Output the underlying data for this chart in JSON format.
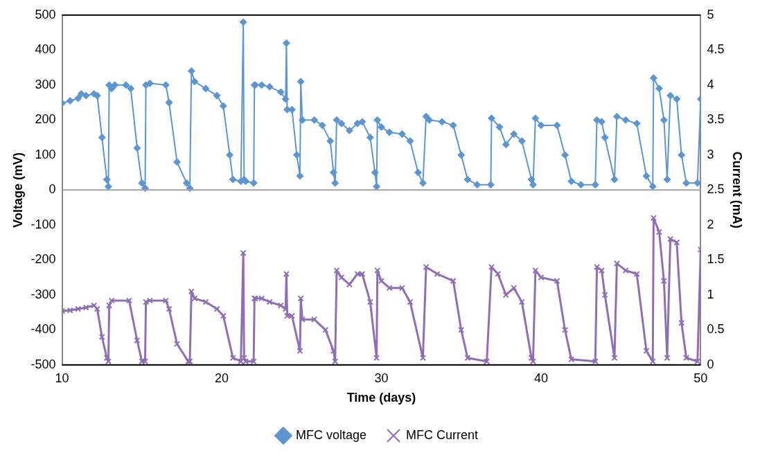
{
  "chart_data": {
    "type": "line",
    "xlabel": "Time (days)",
    "ylabel": "Voltage (mV)",
    "y2label": "Current (mA)",
    "xlim": [
      10,
      50
    ],
    "xticks": [
      10,
      20,
      30,
      40,
      50
    ],
    "ylim": [
      -500,
      500
    ],
    "yticks": [
      -500,
      -400,
      -300,
      -200,
      -100,
      0,
      100,
      200,
      300,
      400,
      500
    ],
    "y2lim": [
      0,
      5
    ],
    "y2ticks": [
      0,
      0.5,
      1,
      1.5,
      2,
      2.5,
      3,
      3.5,
      4,
      4.5,
      5
    ],
    "grid": false,
    "legend": "bottom",
    "ref_lines": [
      {
        "axis": "y",
        "value": 0,
        "color": "#a0a0a0"
      }
    ],
    "series": [
      {
        "name": "MFC voltage",
        "color": "#5b96d2",
        "marker": "diamond",
        "axis": "y",
        "x": [
          10,
          10.5,
          11,
          11.2,
          11.5,
          12,
          12.2,
          12.5,
          12.8,
          12.9,
          12.95,
          13.1,
          13.3,
          14,
          14.3,
          14.7,
          15,
          15.2,
          15.25,
          15.5,
          16.5,
          16.7,
          17.2,
          17.8,
          18,
          18.1,
          18.3,
          19,
          19.7,
          20.1,
          20.5,
          20.7,
          21.2,
          21.35,
          21.4,
          21.5,
          22,
          22.05,
          22.1,
          22.5,
          23,
          23.7,
          24,
          24.05,
          24.1,
          24.4,
          24.7,
          24.9,
          24.95,
          25.05,
          25.8,
          26.3,
          26.8,
          27,
          27.1,
          27.2,
          27.5,
          28,
          28.5,
          28.8,
          29.3,
          29.6,
          29.7,
          29.75,
          30,
          30.5,
          31.3,
          31.8,
          32.3,
          32.6,
          32.8,
          33,
          33.8,
          34.5,
          35,
          35.4,
          36,
          36.85,
          36.9,
          37.4,
          37.8,
          38.3,
          38.8,
          39.4,
          39.5,
          39.65,
          40,
          41,
          41.5,
          41.9,
          42.5,
          43.4,
          43.5,
          43.8,
          44,
          44.6,
          44.75,
          45.3,
          46,
          46.6,
          47,
          47.05,
          47.4,
          47.7,
          47.9,
          48.1,
          48.5,
          48.8,
          49.1,
          49.8,
          50
        ],
        "values": [
          248,
          255,
          262,
          275,
          270,
          275,
          270,
          150,
          30,
          10,
          300,
          290,
          300,
          300,
          290,
          120,
          20,
          5,
          300,
          305,
          300,
          250,
          80,
          20,
          5,
          340,
          310,
          290,
          270,
          240,
          100,
          30,
          25,
          480,
          30,
          25,
          20,
          300,
          300,
          300,
          295,
          280,
          260,
          420,
          230,
          230,
          100,
          40,
          310,
          200,
          200,
          185,
          140,
          50,
          20,
          200,
          190,
          170,
          190,
          195,
          150,
          50,
          10,
          200,
          180,
          165,
          160,
          140,
          50,
          20,
          210,
          200,
          195,
          185,
          100,
          30,
          15,
          15,
          205,
          180,
          130,
          160,
          140,
          30,
          15,
          205,
          185,
          185,
          100,
          25,
          15,
          15,
          200,
          195,
          150,
          30,
          210,
          200,
          190,
          40,
          10,
          320,
          290,
          200,
          30,
          270,
          260,
          100,
          20,
          20,
          260
        ]
      },
      {
        "name": "MFC Current",
        "color": "#8e6fb5",
        "marker": "cross",
        "axis": "y2",
        "x": [
          10,
          10.5,
          11,
          11.5,
          12,
          12.2,
          12.5,
          12.8,
          12.9,
          12.95,
          13.1,
          14.2,
          14.7,
          15,
          15.2,
          15.25,
          15.5,
          16.5,
          16.7,
          17.2,
          17.9,
          18,
          18.1,
          18.3,
          19,
          19.7,
          20.1,
          20.7,
          21.2,
          21.35,
          21.4,
          21.5,
          22,
          22.05,
          22.1,
          22.5,
          23,
          23.7,
          24,
          24.05,
          24.1,
          24.4,
          24.9,
          24.95,
          25.05,
          25.8,
          26.5,
          27,
          27.1,
          27.2,
          27.5,
          28,
          28.5,
          28.8,
          29.3,
          29.7,
          29.75,
          30,
          30.5,
          31.3,
          31.8,
          32.6,
          32.8,
          33.5,
          34.5,
          35,
          35.4,
          36.6,
          36.9,
          37.3,
          37.8,
          38.3,
          38.8,
          39.4,
          39.5,
          39.65,
          40,
          41,
          41.5,
          41.9,
          43.4,
          43.5,
          43.8,
          44,
          44.6,
          44.75,
          45.3,
          46,
          46.6,
          47,
          47.05,
          47.4,
          47.7,
          47.9,
          48.1,
          48.5,
          48.8,
          49.1,
          49.8,
          50
        ],
        "values": [
          0.77,
          0.78,
          0.8,
          0.82,
          0.85,
          0.8,
          0.4,
          0.1,
          0.05,
          0.85,
          0.92,
          0.92,
          0.35,
          0.05,
          0.05,
          0.9,
          0.92,
          0.92,
          0.8,
          0.3,
          0.05,
          0.05,
          1.05,
          0.95,
          0.9,
          0.8,
          0.7,
          0.1,
          0.05,
          1.6,
          0.1,
          0.05,
          0.05,
          0.95,
          0.95,
          0.95,
          0.9,
          0.85,
          0.8,
          1.3,
          0.7,
          0.7,
          0.2,
          0.95,
          0.65,
          0.65,
          0.5,
          0.2,
          0.05,
          1.35,
          1.25,
          1.15,
          1.3,
          1.3,
          0.9,
          0.1,
          1.35,
          1.2,
          1.1,
          1.1,
          0.9,
          0.1,
          1.4,
          1.3,
          1.2,
          0.5,
          0.1,
          0.05,
          1.4,
          1.3,
          1.0,
          1.1,
          0.9,
          0.1,
          0.05,
          1.35,
          1.25,
          1.2,
          0.5,
          0.08,
          0.05,
          1.4,
          1.35,
          1.0,
          0.1,
          1.45,
          1.35,
          1.3,
          0.2,
          0.05,
          2.1,
          1.9,
          1.2,
          0.1,
          1.8,
          1.75,
          0.6,
          0.1,
          0.05,
          1.65
        ]
      }
    ]
  }
}
